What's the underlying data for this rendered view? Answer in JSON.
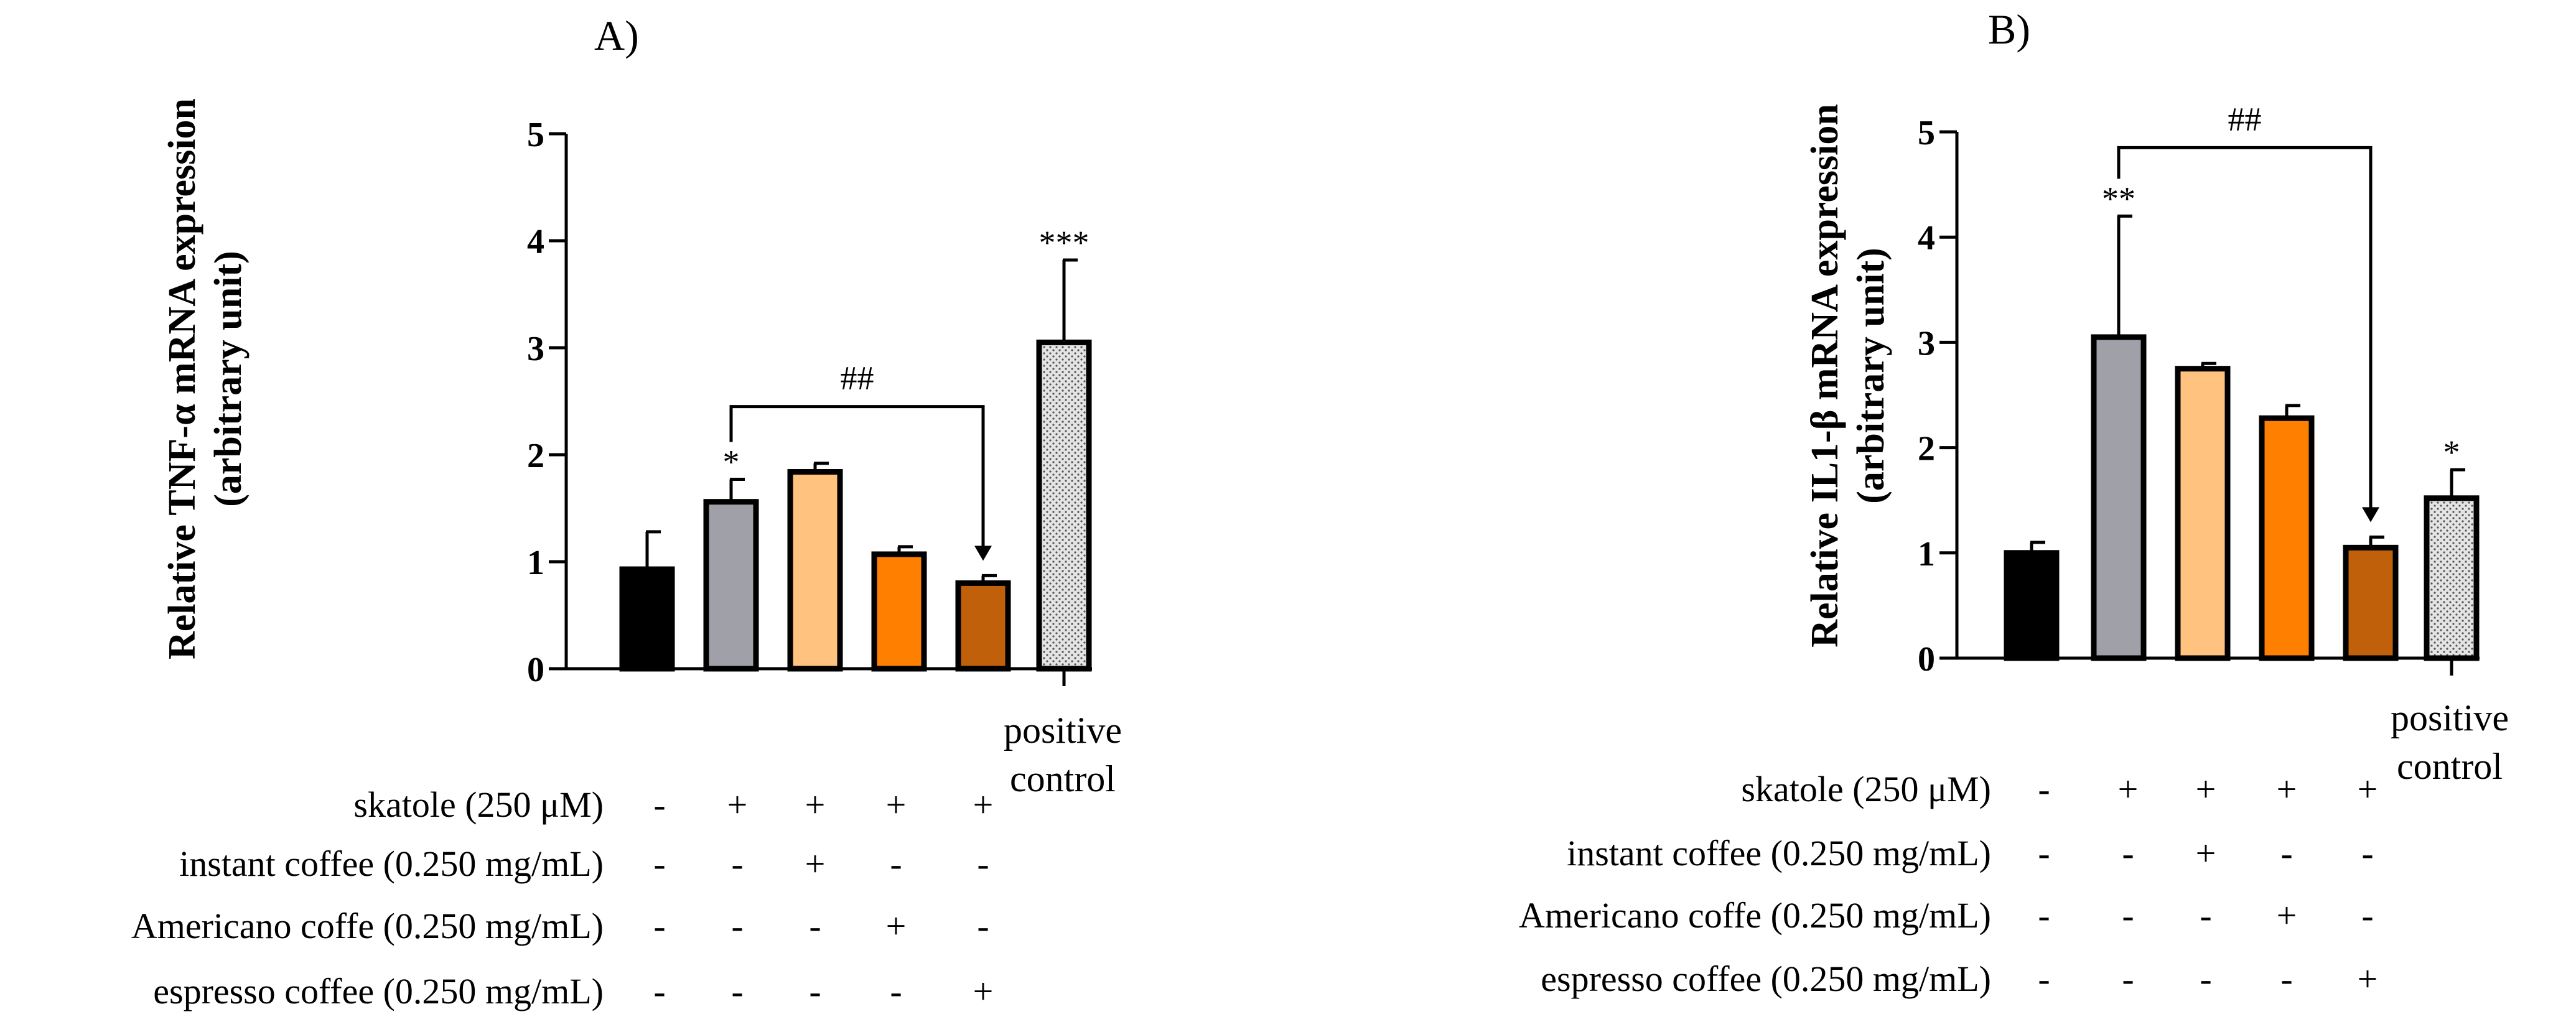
{
  "chart_data": [
    {
      "type": "bar",
      "panel_label": "A)",
      "ylabel_line1": "Relative TNF-α mRNA expression",
      "ylabel_line2": "(arbitrary unit)",
      "ylim": [
        0,
        5
      ],
      "yticks": [
        "0",
        "1",
        "2",
        "3",
        "4",
        "5"
      ],
      "categories": [
        "control",
        "skatole",
        "skatole + instant coffee",
        "skatole + Americano coffe",
        "skatole + espresso coffee",
        "positive control"
      ],
      "values": [
        0.93,
        1.56,
        1.84,
        1.07,
        0.8,
        3.05
      ],
      "errors": [
        0.35,
        0.21,
        0.08,
        0.07,
        0.07,
        0.77
      ],
      "bar_colors": [
        "#000000",
        "#a0a0a8",
        "#ffc37f",
        "#ff8000",
        "#c0600a",
        "#dcdcdc"
      ],
      "significance": [
        "",
        "*",
        "",
        "",
        "",
        "***"
      ],
      "bracket": {
        "from": 1,
        "to": 4,
        "label": "##",
        "y_value": 2.45
      },
      "last_category_label": [
        "positive",
        "control"
      ]
    },
    {
      "type": "bar",
      "panel_label": "B)",
      "ylabel_line1": "Relative IL1-β mRNA expression",
      "ylabel_line2": "(arbitrary unit)",
      "ylim": [
        0,
        5
      ],
      "yticks": [
        "0",
        "1",
        "2",
        "3",
        "4",
        "5"
      ],
      "categories": [
        "control",
        "skatole",
        "skatole + instant coffee",
        "skatole + Americano coffe",
        "skatole + espresso coffee",
        "positive control"
      ],
      "values": [
        1.0,
        3.05,
        2.75,
        2.28,
        1.05,
        1.52
      ],
      "errors": [
        0.1,
        1.15,
        0.05,
        0.12,
        0.1,
        0.27
      ],
      "bar_colors": [
        "#000000",
        "#a0a0a8",
        "#ffc37f",
        "#ff8000",
        "#c0600a",
        "#dcdcdc"
      ],
      "significance": [
        "",
        "**",
        "",
        "",
        "",
        "*"
      ],
      "bracket": {
        "from": 1,
        "to": 4,
        "label": "##",
        "y_value": 4.85
      },
      "last_category_label": [
        "positive",
        "control"
      ]
    }
  ],
  "conditions": {
    "rows": [
      {
        "label": "skatole (250 μM)",
        "marks": [
          "-",
          "+",
          "+",
          "+",
          "+"
        ]
      },
      {
        "label": "instant coffee (0.250 mg/mL)",
        "marks": [
          "-",
          "-",
          "+",
          "-",
          "-"
        ]
      },
      {
        "label": "Americano coffe (0.250 mg/mL)",
        "marks": [
          "-",
          "-",
          "-",
          "+",
          "-"
        ]
      },
      {
        "label": "espresso coffee (0.250 mg/mL)",
        "marks": [
          "-",
          "-",
          "-",
          "-",
          "+"
        ]
      }
    ]
  }
}
